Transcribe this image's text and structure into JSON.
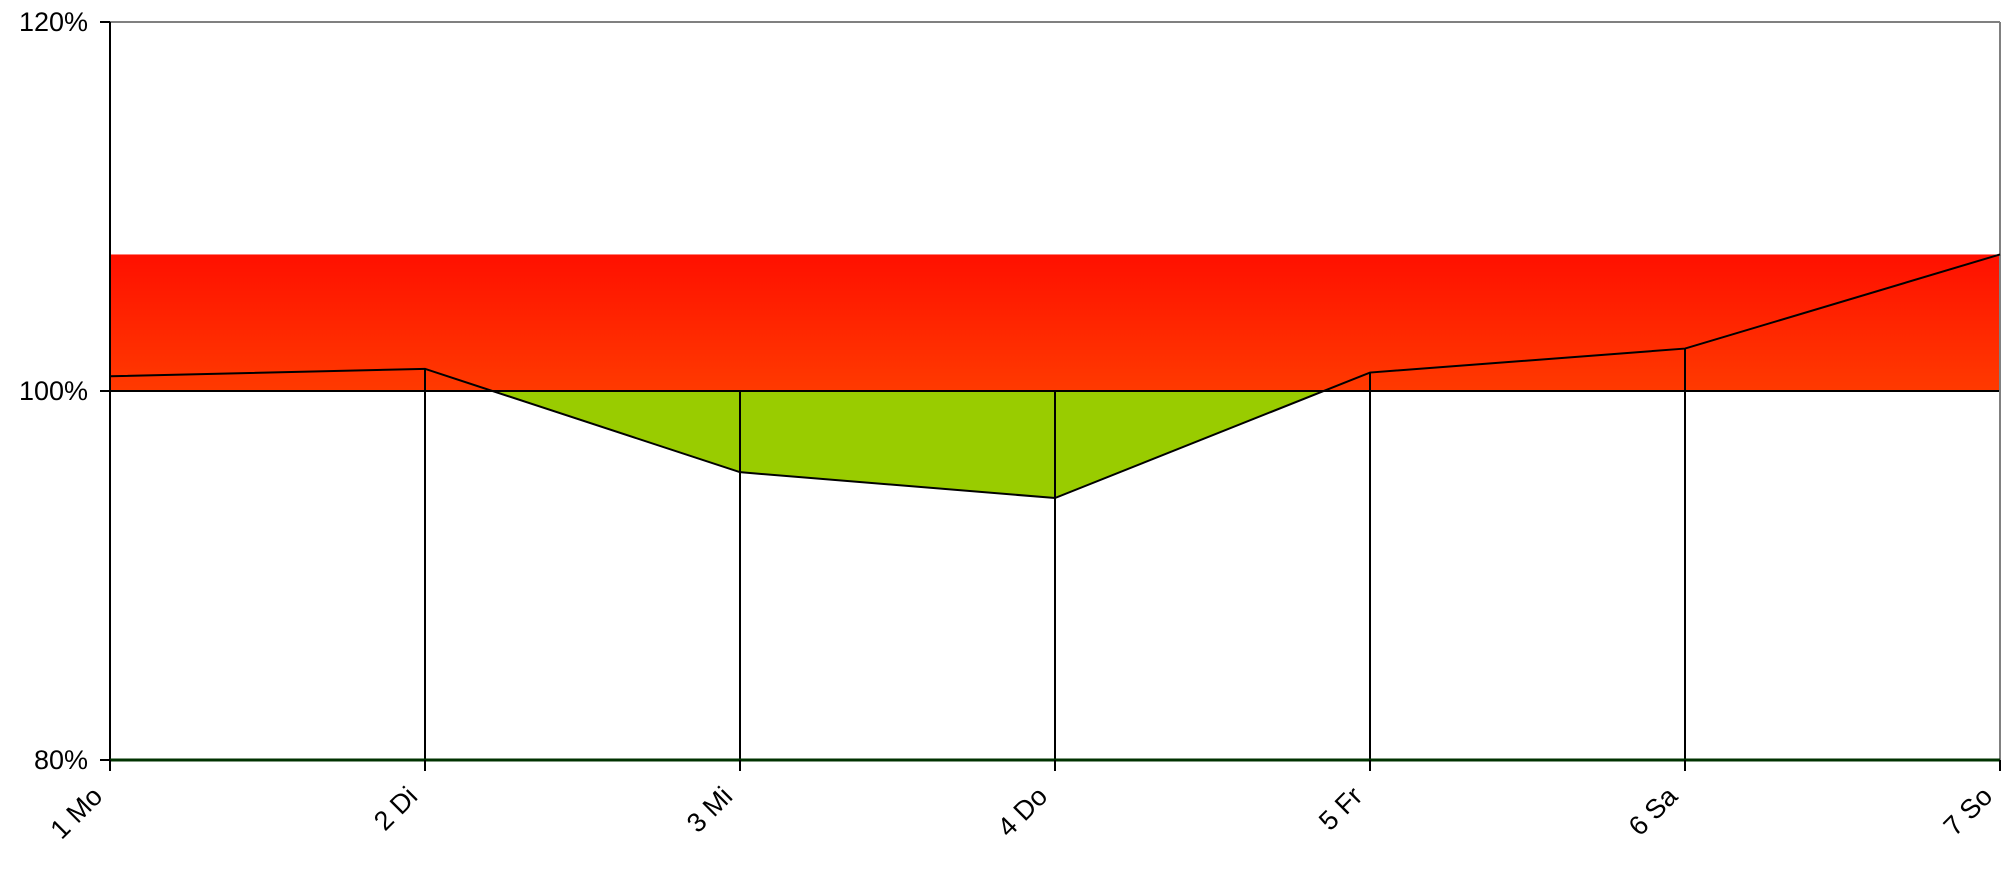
{
  "chart_data": {
    "type": "area",
    "categories": [
      "1 Mo",
      "2 Di",
      "3 Mi",
      "4 Do",
      "5 Fr",
      "6 Sa",
      "7 So"
    ],
    "values": [
      100.8,
      101.2,
      95.6,
      94.2,
      101.0,
      102.3,
      107.4
    ],
    "baseline": 100,
    "band": [
      100,
      107.4
    ],
    "ylim": [
      80,
      120
    ],
    "yticks": [
      80,
      100,
      120
    ],
    "ytick_labels": [
      "80%",
      "100%",
      "120%"
    ],
    "title": "",
    "xlabel": "",
    "ylabel": "",
    "grid": "vertical lines at categories",
    "legend": "none",
    "colors": {
      "over_top": "#ff1000",
      "over_bottom": "#ff3a00",
      "under": "#99cc00",
      "line": "#000000",
      "axis_bottom": "#003300"
    }
  }
}
